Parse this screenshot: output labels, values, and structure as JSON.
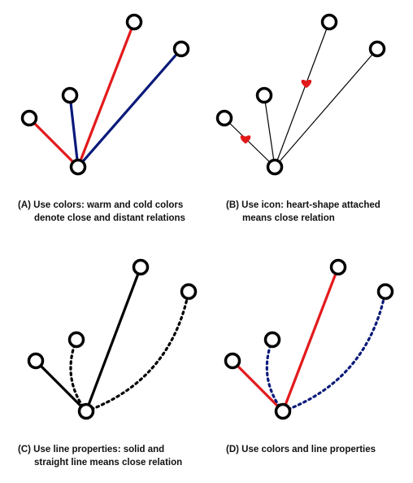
{
  "colors": {
    "warm": "#e31a1c",
    "cold": "#0a1a7a",
    "black": "#000000",
    "heart": "#e31a1c"
  },
  "panels": [
    {
      "id": "A",
      "caption_line1": "(A) Use colors: warm and cold colors",
      "caption_line2": "denote close and distant relations",
      "edges": [
        {
          "target": 1,
          "color": "warm",
          "style": "solid"
        },
        {
          "target": 2,
          "color": "cold",
          "style": "solid"
        },
        {
          "target": 3,
          "color": "warm",
          "style": "solid"
        },
        {
          "target": 4,
          "color": "cold",
          "style": "solid"
        }
      ]
    },
    {
      "id": "B",
      "caption_line1": "(B) Use icon: heart-shape attached",
      "caption_line2": "means close relation",
      "edges": [
        {
          "target": 1,
          "color": "black",
          "style": "thin",
          "icon": "heart-icon"
        },
        {
          "target": 2,
          "color": "black",
          "style": "thin"
        },
        {
          "target": 3,
          "color": "black",
          "style": "thin",
          "icon": "heart-icon"
        },
        {
          "target": 4,
          "color": "black",
          "style": "thin"
        }
      ]
    },
    {
      "id": "C",
      "caption_line1": "(C) Use line properties: solid and",
      "caption_line2": "straight line means close relation",
      "edges": [
        {
          "target": 1,
          "color": "black",
          "style": "solid"
        },
        {
          "target": 2,
          "color": "black",
          "style": "dotted-curve"
        },
        {
          "target": 3,
          "color": "black",
          "style": "solid"
        },
        {
          "target": 4,
          "color": "black",
          "style": "dotted-curve"
        }
      ]
    },
    {
      "id": "D",
      "caption_line1": "(D) Use colors and line properties",
      "caption_line2": "",
      "edges": [
        {
          "target": 1,
          "color": "warm",
          "style": "solid"
        },
        {
          "target": 2,
          "color": "cold",
          "style": "dotted-curve"
        },
        {
          "target": 3,
          "color": "warm",
          "style": "solid"
        },
        {
          "target": 4,
          "color": "cold",
          "style": "dotted-curve"
        }
      ]
    }
  ]
}
